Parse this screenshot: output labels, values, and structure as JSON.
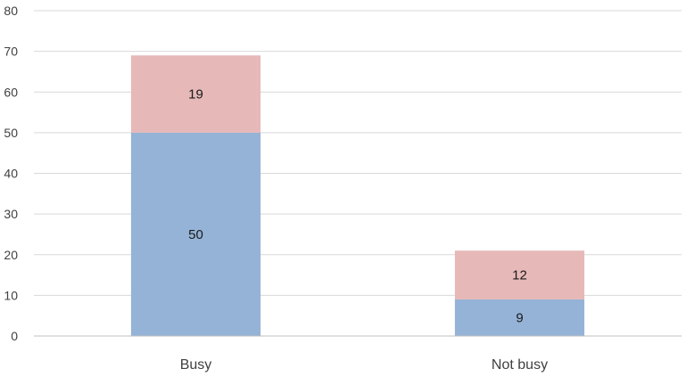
{
  "chart_data": {
    "type": "bar",
    "stacked": true,
    "categories": [
      "Busy",
      "Not busy"
    ],
    "series": [
      {
        "values": [
          50,
          9
        ],
        "color": "#95b3d7"
      },
      {
        "values": [
          19,
          12
        ],
        "color": "#e6b9b8"
      }
    ],
    "ylim": [
      0,
      80
    ],
    "yticks": [
      "0",
      "10",
      "20",
      "30",
      "40",
      "50",
      "60",
      "70",
      "80"
    ],
    "grid": true,
    "legend": "none"
  }
}
